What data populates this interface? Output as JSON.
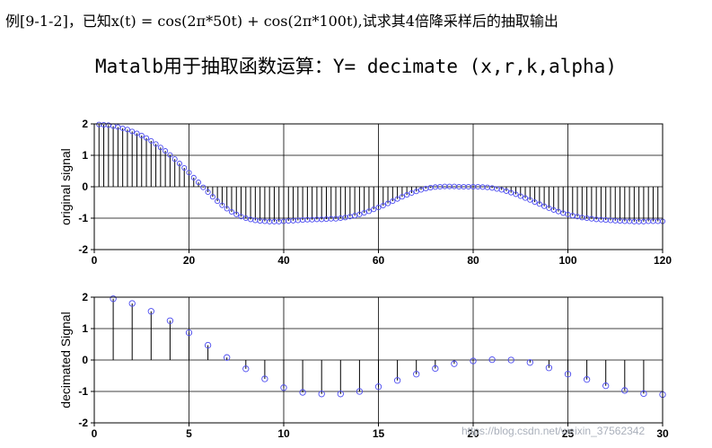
{
  "header": {
    "line1": "例[9-1-2]，已知x(t) = cos(2π*50t) + cos(2π*100t),试求其4倍降采样后的抽取输出",
    "line2": "Matalb用于抽取函数运算：Y= decimate (x,r,k,alpha)"
  },
  "watermark": "https://blog.csdn.net/weixin_37562342",
  "colors": {
    "stem": "#000000",
    "marker": "#4a4af0",
    "grid": "#000000"
  },
  "chart_data": [
    {
      "type": "stem",
      "title": "",
      "xlabel": "",
      "ylabel": "original signal",
      "xlim": [
        0,
        120
      ],
      "ylim": [
        -2,
        2
      ],
      "xticks": [
        0,
        20,
        40,
        60,
        80,
        100,
        120
      ],
      "yticks": [
        -2,
        -1,
        0,
        1,
        2
      ],
      "grid": true,
      "x": [
        1,
        2,
        3,
        4,
        5,
        6,
        7,
        8,
        9,
        10,
        11,
        12,
        13,
        14,
        15,
        16,
        17,
        18,
        19,
        20,
        21,
        22,
        23,
        24,
        25,
        26,
        27,
        28,
        29,
        30,
        31,
        32,
        33,
        34,
        35,
        36,
        37,
        38,
        39,
        40,
        41,
        42,
        43,
        44,
        45,
        46,
        47,
        48,
        49,
        50,
        51,
        52,
        53,
        54,
        55,
        56,
        57,
        58,
        59,
        60,
        61,
        62,
        63,
        64,
        65,
        66,
        67,
        68,
        69,
        70,
        71,
        72,
        73,
        74,
        75,
        76,
        77,
        78,
        79,
        80,
        81,
        82,
        83,
        84,
        85,
        86,
        87,
        88,
        89,
        90,
        91,
        92,
        93,
        94,
        95,
        96,
        97,
        98,
        99,
        100,
        101,
        102,
        103,
        104,
        105,
        106,
        107,
        108,
        109,
        110,
        111,
        112,
        113,
        114,
        115,
        116,
        117,
        118,
        119,
        120
      ],
      "values": [
        1.98,
        1.97,
        1.96,
        1.93,
        1.9,
        1.86,
        1.82,
        1.76,
        1.7,
        1.63,
        1.55,
        1.46,
        1.36,
        1.25,
        1.14,
        1.01,
        0.88,
        0.74,
        0.6,
        0.45,
        0.29,
        0.14,
        -0.02,
        -0.17,
        -0.32,
        -0.46,
        -0.59,
        -0.7,
        -0.8,
        -0.88,
        -0.95,
        -1.0,
        -1.04,
        -1.07,
        -1.09,
        -1.1,
        -1.11,
        -1.11,
        -1.11,
        -1.1,
        -1.09,
        -1.08,
        -1.07,
        -1.06,
        -1.05,
        -1.05,
        -1.04,
        -1.04,
        -1.03,
        -1.02,
        -1.02,
        -1.0,
        -0.98,
        -0.95,
        -0.92,
        -0.88,
        -0.83,
        -0.78,
        -0.72,
        -0.66,
        -0.6,
        -0.53,
        -0.46,
        -0.39,
        -0.32,
        -0.26,
        -0.2,
        -0.15,
        -0.1,
        -0.06,
        -0.03,
        -0.01,
        0.0,
        0.01,
        0.01,
        0.01,
        0.0,
        0.0,
        0.0,
        0.0,
        0.0,
        -0.01,
        -0.02,
        -0.04,
        -0.07,
        -0.1,
        -0.14,
        -0.19,
        -0.24,
        -0.3,
        -0.36,
        -0.42,
        -0.49,
        -0.55,
        -0.62,
        -0.68,
        -0.74,
        -0.79,
        -0.84,
        -0.88,
        -0.92,
        -0.95,
        -0.98,
        -1.0,
        -1.02,
        -1.04,
        -1.05,
        -1.06,
        -1.07,
        -1.08,
        -1.09,
        -1.1,
        -1.1,
        -1.11,
        -1.11,
        -1.11,
        -1.1,
        -1.1,
        -1.1,
        -1.1
      ]
    },
    {
      "type": "stem",
      "title": "",
      "xlabel": "",
      "ylabel": "decimated Signal",
      "xlim": [
        0,
        30
      ],
      "ylim": [
        -2,
        2
      ],
      "xticks": [
        0,
        5,
        10,
        15,
        20,
        25,
        30
      ],
      "yticks": [
        -2,
        -1,
        0,
        1,
        2
      ],
      "grid": true,
      "x": [
        1,
        2,
        3,
        4,
        5,
        6,
        7,
        8,
        9,
        10,
        11,
        12,
        13,
        14,
        15,
        16,
        17,
        18,
        19,
        20,
        21,
        22,
        23,
        24,
        25,
        26,
        27,
        28,
        29,
        30
      ],
      "values": [
        1.95,
        1.8,
        1.55,
        1.25,
        0.87,
        0.47,
        0.08,
        -0.28,
        -0.6,
        -0.88,
        -1.03,
        -1.08,
        -1.08,
        -1.0,
        -0.85,
        -0.65,
        -0.45,
        -0.27,
        -0.12,
        -0.03,
        0.01,
        0.0,
        -0.08,
        -0.25,
        -0.45,
        -0.62,
        -0.82,
        -0.97,
        -1.07,
        -1.1
      ]
    }
  ]
}
